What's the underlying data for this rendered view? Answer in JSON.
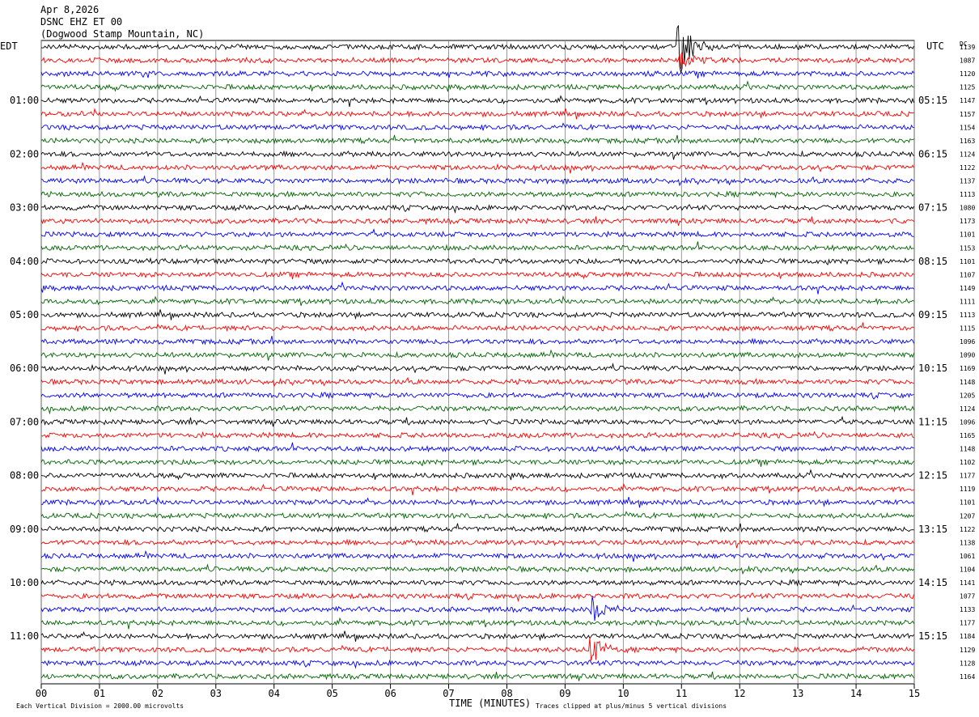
{
  "header": {
    "date": "Apr 8,2026",
    "station": "DSNC EHZ ET 00",
    "location": "(Dogwood Stamp Mountain, NC)"
  },
  "labels": {
    "left_tz": "EDT",
    "right_tz": "UTC",
    "dc_header": "DC",
    "xlabel": "TIME (MINUTES)",
    "scale_note": "Each Vertical Division = 2000.00 microvolts",
    "clip_note": "Traces clipped at plus/minus 5 vertical divisions"
  },
  "colors": {
    "trace_cycle": [
      "#000000",
      "#ff0000",
      "#0000ff",
      "#006400"
    ],
    "grid": "#808080"
  },
  "chart_data": {
    "type": "line",
    "title": "DSNC EHZ ET 00",
    "xlabel": "TIME (MINUTES)",
    "xlim": [
      0,
      15
    ],
    "x_ticks": [
      "00",
      "01",
      "02",
      "03",
      "04",
      "05",
      "06",
      "07",
      "08",
      "09",
      "10",
      "11",
      "12",
      "13",
      "14",
      "15"
    ],
    "trace_count": 48,
    "left_hour_labels": [
      "01:00",
      "02:00",
      "03:00",
      "04:00",
      "05:00",
      "06:00",
      "07:00",
      "08:00",
      "09:00",
      "10:00",
      "11:00"
    ],
    "right_hour_labels": [
      "05:15",
      "06:15",
      "07:15",
      "08:15",
      "09:15",
      "10:15",
      "11:15",
      "12:15",
      "13:15",
      "14:15",
      "15:15"
    ],
    "dc_offsets": [
      "1139",
      "1087",
      "1120",
      "1125",
      "1147",
      "1157",
      "1154",
      "1163",
      "1124",
      "1122",
      "1137",
      "1113",
      "1080",
      "1173",
      "1101",
      "1153",
      "1101",
      "1107",
      "1149",
      "1111",
      "1113",
      "1115",
      "1096",
      "1090",
      "1169",
      "1148",
      "1205",
      "1124",
      "1096",
      "1165",
      "1148",
      "1102",
      "1177",
      "1119",
      "1101",
      "1207",
      "1122",
      "1138",
      "1061",
      "1104",
      "1141",
      "1077",
      "1133",
      "1177",
      "1184",
      "1129",
      "1128",
      "1164"
    ],
    "events": [
      {
        "trace": 0,
        "minute": 11.0,
        "amplitude": "clipped"
      },
      {
        "trace": 1,
        "minute": 11.0,
        "amplitude": "large"
      },
      {
        "trace": 42,
        "minute": 9.5,
        "amplitude": "large"
      },
      {
        "trace": 45,
        "minute": 9.5,
        "amplitude": "large"
      }
    ]
  }
}
